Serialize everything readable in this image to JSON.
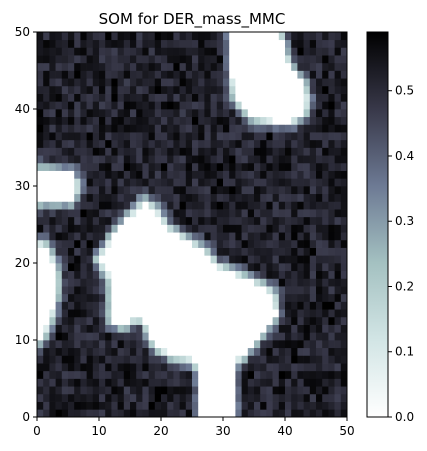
{
  "chart_data": {
    "type": "heatmap",
    "title": "SOM for DER_mass_MMC",
    "xlabel": "",
    "ylabel": "",
    "xlim": [
      0,
      50
    ],
    "ylim": [
      0,
      50
    ],
    "grid_size": 50,
    "x_ticks": [
      0,
      10,
      20,
      30,
      40,
      50
    ],
    "y_ticks": [
      0,
      10,
      20,
      30,
      40,
      50
    ],
    "colormap": "bone_r",
    "colorbar": {
      "range": [
        0,
        0.59
      ],
      "ticks": [
        0.0,
        0.1,
        0.2,
        0.3,
        0.4,
        0.5
      ],
      "tick_labels": [
        "0.0",
        "0.1",
        "0.2",
        "0.3",
        "0.4",
        "0.5"
      ]
    },
    "background_value": 0.52,
    "value_variation": 0.06,
    "low_value_regions": [
      {
        "region": "top-right blob",
        "x_range": [
          32,
          43
        ],
        "y_range": [
          38,
          50
        ]
      },
      {
        "region": "left blob",
        "x_range": [
          0,
          6
        ],
        "y_range": [
          28,
          32
        ]
      },
      {
        "region": "left strip",
        "x_range": [
          0,
          3
        ],
        "y_range": [
          10,
          22
        ]
      },
      {
        "region": "central blob",
        "x_range": [
          10,
          39
        ],
        "y_range": [
          8,
          28
        ]
      },
      {
        "region": "bottom channel",
        "x_range": [
          26,
          31
        ],
        "y_range": [
          0,
          10
        ]
      }
    ]
  }
}
